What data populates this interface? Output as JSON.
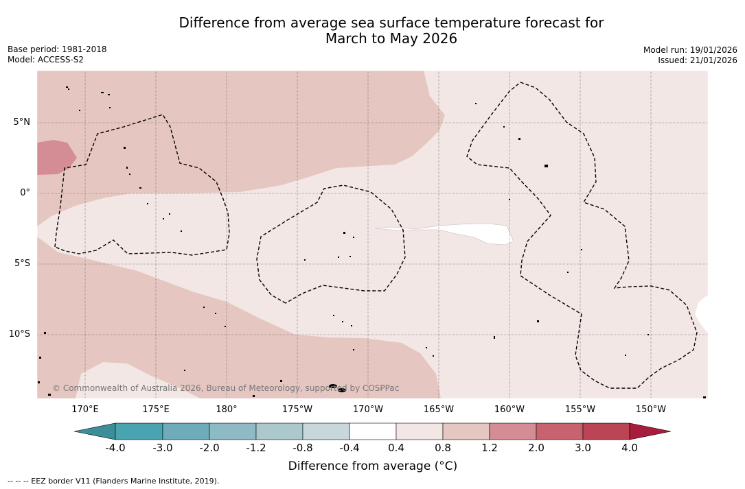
{
  "title": {
    "line1": "Difference from average sea surface temperature forecast for",
    "line2": "March to May 2026"
  },
  "meta": {
    "base_period": "Base period: 1981-2018",
    "model": "Model: ACCESS-S2",
    "model_run": "Model run: 19/01/2026",
    "issued": "Issued: 21/01/2026"
  },
  "map": {
    "lat_labels": [
      "5°N",
      "0°",
      "5°S",
      "10°S"
    ],
    "lon_labels": [
      "170°E",
      "175°E",
      "180°",
      "175°W",
      "170°W",
      "165°W",
      "160°W",
      "155°W",
      "150°W"
    ],
    "copyright": "© Commonwealth of Australia 2026, Bureau of Meteorology, supported by COSPPac",
    "colors": {
      "anomaly_0_4_to_0_8": "#f3e7e5",
      "anomaly_0_8_to_1_2": "#e6c6c1",
      "anomaly_1_2_to_2_0": "#d48d94",
      "neutral": "#ffffff",
      "eez_border": "#000000"
    }
  },
  "colorbar": {
    "tick_labels": [
      "-4.0",
      "-3.0",
      "-2.0",
      "-1.2",
      "-0.8",
      "-0.4",
      "0.4",
      "0.8",
      "1.2",
      "2.0",
      "3.0",
      "4.0"
    ],
    "bins": [
      {
        "color": "#3c8e99"
      },
      {
        "color": "#4aa3b1"
      },
      {
        "color": "#6eacbb"
      },
      {
        "color": "#8ebac5"
      },
      {
        "color": "#abc8cd"
      },
      {
        "color": "#c7d7db"
      },
      {
        "color": "#ffffff"
      },
      {
        "color": "#f3e7e5"
      },
      {
        "color": "#e6c6c1"
      },
      {
        "color": "#d48d94"
      },
      {
        "color": "#c7636e"
      },
      {
        "color": "#bb4554"
      },
      {
        "color": "#a81d3b"
      }
    ],
    "title": "Difference from average (°C)"
  },
  "footnote": "--  --  -- EEZ border V11 (Flanders Marine Institute, 2019)."
}
